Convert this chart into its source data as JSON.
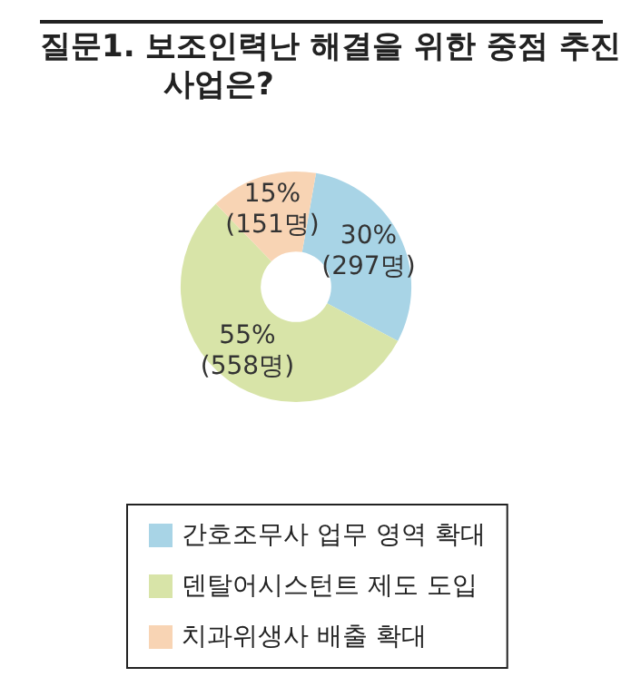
{
  "chart_data": {
    "type": "donut",
    "title": "질문1. 보조인력난 해결을 위한 중점 추진\n사업은?",
    "categories": [
      "간호조무사 업무 영역 확대",
      "덴탈어시스턴트 제도 도입",
      "치과위생사 배출 확대"
    ],
    "values": [
      30,
      55,
      15
    ],
    "value_labels": [
      "30%\n(297명)",
      "55%\n(558명)",
      "15%\n(151명)"
    ],
    "colors": [
      "#a8d4e6",
      "#d8e4a8",
      "#f8d4b4"
    ],
    "legend": "bottom"
  }
}
